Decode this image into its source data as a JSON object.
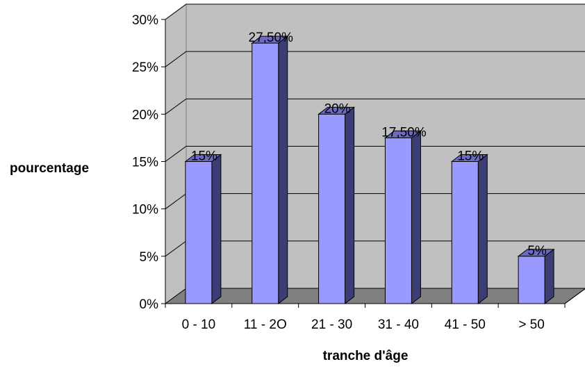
{
  "chart_data": {
    "type": "bar",
    "title": "",
    "categories": [
      "0 - 10",
      "11 - 2O",
      "21 - 30",
      "31 - 40",
      "41 - 50",
      "> 50"
    ],
    "values": [
      15,
      27.5,
      20,
      17.5,
      15,
      5
    ],
    "data_labels": [
      "15%",
      "27,50%",
      "20%",
      "17,50%",
      "15%",
      "5%"
    ],
    "ytick_labels": [
      "0%",
      "5%",
      "10%",
      "15%",
      "20%",
      "25%",
      "30%"
    ],
    "yticks": [
      0,
      5,
      10,
      15,
      20,
      25,
      30
    ],
    "ylim": [
      0,
      30
    ],
    "xlabel": "tranche d'âge",
    "ylabel": "pourcentage",
    "grid": true,
    "legend": "none",
    "style": "3d-column",
    "colors": {
      "bar_front": "#9999ff",
      "bar_side": "#3d3d75",
      "bar_top": "#6b6bbf",
      "wall": "#c0c0c0",
      "floor": "#808080",
      "gridline": "#000000"
    }
  }
}
